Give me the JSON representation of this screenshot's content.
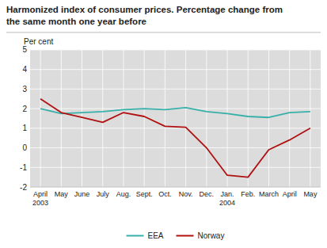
{
  "chart_data": {
    "type": "line",
    "title": "Harmonized index of consumer prices. Percentage change from\nthe same month one year before",
    "ylabel": "Per cent",
    "categories": [
      "April\n2003",
      "May",
      "June",
      "July",
      "Aug.",
      "Sept.",
      "Oct.",
      "Nov.",
      "Dec.",
      "Jan.\n2004",
      "Feb.",
      "March",
      "April",
      "May"
    ],
    "series": [
      {
        "name": "EEA",
        "color": "#38b0aa",
        "values": [
          2.0,
          1.75,
          1.8,
          1.85,
          1.95,
          2.0,
          1.95,
          2.05,
          1.85,
          1.75,
          1.6,
          1.55,
          1.8,
          1.85
        ]
      },
      {
        "name": "Norway",
        "color": "#b01010",
        "values": [
          2.5,
          1.8,
          1.55,
          1.3,
          1.8,
          1.6,
          1.1,
          1.05,
          0.0,
          -1.4,
          -1.5,
          -0.1,
          0.4,
          1.0
        ]
      }
    ],
    "ylim": [
      -2,
      5
    ],
    "yticks": [
      -2,
      -1,
      0,
      1,
      2,
      3,
      4,
      5
    ],
    "grid": true,
    "legend": "bottom"
  }
}
